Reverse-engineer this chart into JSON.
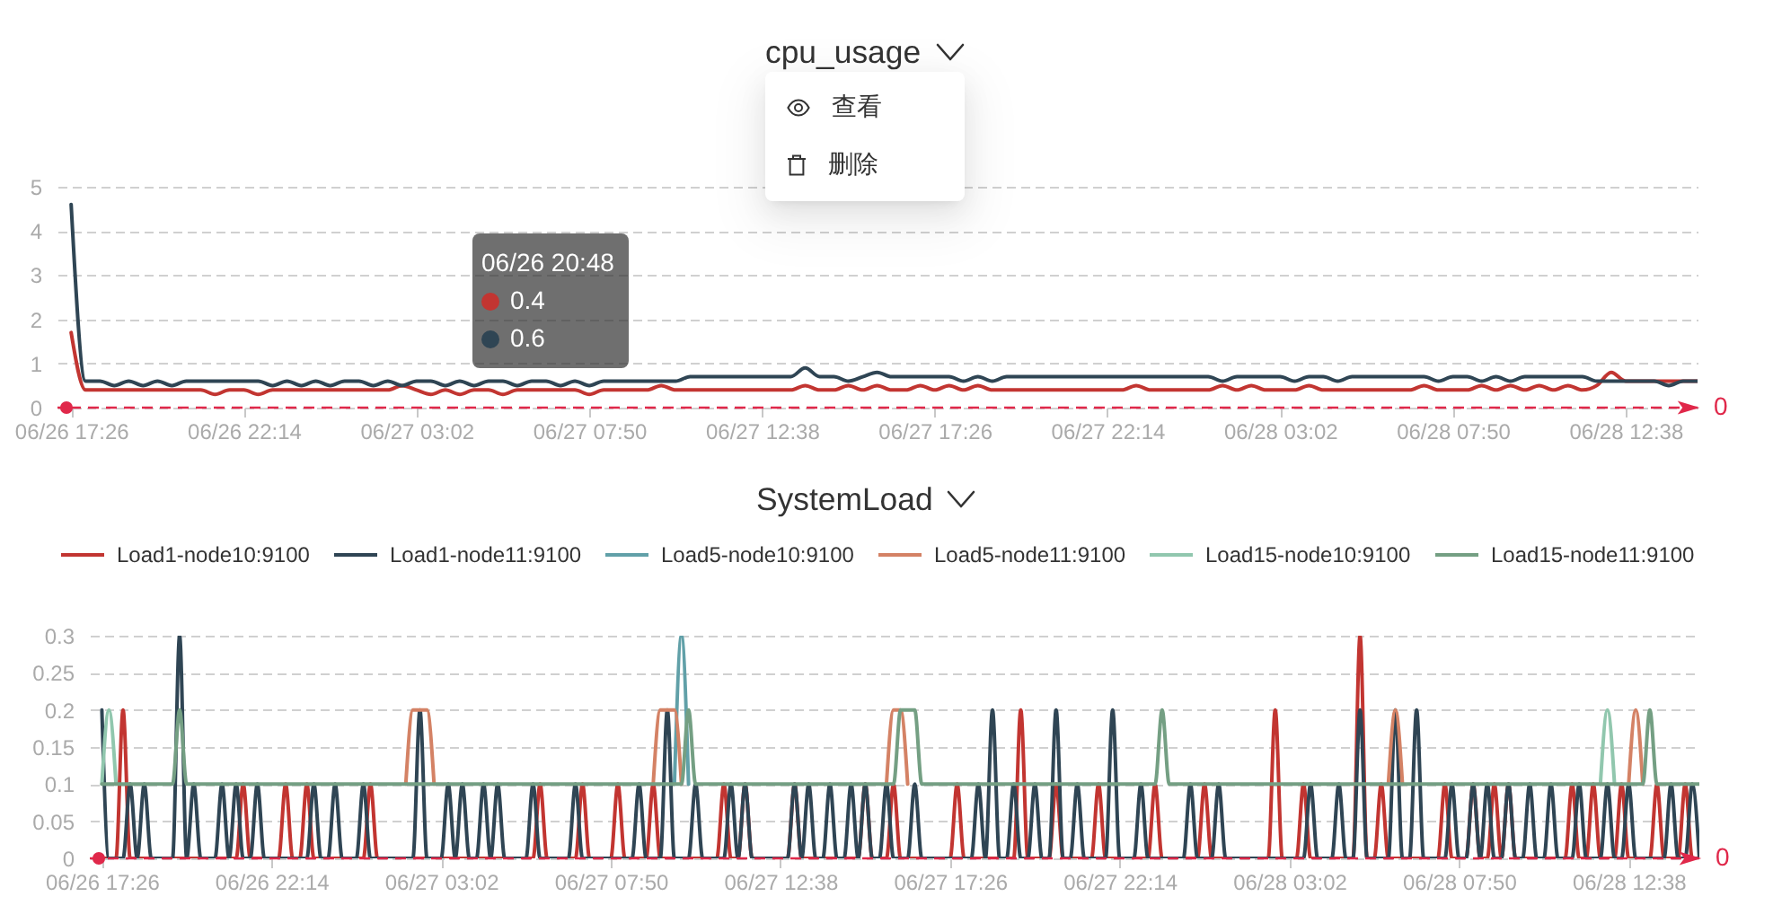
{
  "chart_data": [
    {
      "type": "line",
      "title": "cpu_usage",
      "categories": [
        "06/26 17:26",
        null,
        null,
        null,
        null,
        null,
        null,
        null,
        null,
        null,
        null,
        null,
        "06/26 22:14",
        null,
        null,
        null,
        null,
        null,
        null,
        null,
        null,
        null,
        null,
        null,
        "06/27 03:02",
        null,
        null,
        null,
        null,
        null,
        null,
        null,
        null,
        null,
        null,
        null,
        "06/27 07:50",
        null,
        null,
        null,
        null,
        null,
        null,
        null,
        null,
        null,
        null,
        null,
        "06/27 12:38",
        null,
        null,
        null,
        null,
        null,
        null,
        null,
        null,
        null,
        null,
        null,
        "06/27 17:26",
        null,
        null,
        null,
        null,
        null,
        null,
        null,
        null,
        null,
        null,
        null,
        "06/27 22:14",
        null,
        null,
        null,
        null,
        null,
        null,
        null,
        null,
        null,
        null,
        null,
        "06/28 03:02",
        null,
        null,
        null,
        null,
        null,
        null,
        null,
        null,
        null,
        null,
        null,
        "06/28 07:50",
        null,
        null,
        null,
        null,
        null,
        null,
        null,
        null,
        null,
        null,
        null,
        "06/28 12:38",
        null,
        null,
        null,
        null,
        null
      ],
      "ylim": [
        0,
        5
      ],
      "yticks": [
        0,
        1,
        2,
        3,
        4,
        5
      ],
      "grid": "y",
      "series": [
        {
          "color": "#c23531",
          "values": [
            1.7,
            0.4,
            0.4,
            0.4,
            0.4,
            0.4,
            0.4,
            0.4,
            0.4,
            0.4,
            0.3,
            0.4,
            0.4,
            0.3,
            0.4,
            0.4,
            0.4,
            0.4,
            0.4,
            0.4,
            0.4,
            0.4,
            0.4,
            0.5,
            0.4,
            0.3,
            0.4,
            0.3,
            0.4,
            0.4,
            0.3,
            0.4,
            0.4,
            0.4,
            0.4,
            0.4,
            0.3,
            0.4,
            0.4,
            0.4,
            0.4,
            0.5,
            0.4,
            0.4,
            0.4,
            0.4,
            0.4,
            0.4,
            0.4,
            0.4,
            0.4,
            0.5,
            0.4,
            0.4,
            0.5,
            0.4,
            0.5,
            0.4,
            0.4,
            0.5,
            0.4,
            0.5,
            0.4,
            0.5,
            0.4,
            0.4,
            0.4,
            0.4,
            0.4,
            0.4,
            0.4,
            0.4,
            0.4,
            0.4,
            0.5,
            0.4,
            0.4,
            0.4,
            0.4,
            0.4,
            0.5,
            0.4,
            0.5,
            0.4,
            0.4,
            0.4,
            0.5,
            0.4,
            0.4,
            0.4,
            0.4,
            0.4,
            0.4,
            0.4,
            0.5,
            0.4,
            0.4,
            0.4,
            0.5,
            0.4,
            0.5,
            0.4,
            0.5,
            0.4,
            0.5,
            0.4,
            0.5,
            0.8,
            0.6,
            0.6,
            0.6,
            0.6,
            0.6,
            0.6
          ]
        },
        {
          "color": "#2f4554",
          "values": [
            4.6,
            0.6,
            0.6,
            0.5,
            0.6,
            0.5,
            0.6,
            0.5,
            0.6,
            0.6,
            0.6,
            0.6,
            0.6,
            0.6,
            0.5,
            0.6,
            0.5,
            0.6,
            0.5,
            0.6,
            0.6,
            0.5,
            0.6,
            0.5,
            0.6,
            0.6,
            0.5,
            0.6,
            0.5,
            0.6,
            0.6,
            0.5,
            0.6,
            0.6,
            0.5,
            0.6,
            0.5,
            0.6,
            0.6,
            0.6,
            0.6,
            0.6,
            0.6,
            0.7,
            0.7,
            0.7,
            0.7,
            0.7,
            0.7,
            0.7,
            0.7,
            0.9,
            0.7,
            0.7,
            0.6,
            0.7,
            0.8,
            0.7,
            0.7,
            0.7,
            0.7,
            0.7,
            0.6,
            0.7,
            0.6,
            0.7,
            0.7,
            0.7,
            0.7,
            0.7,
            0.7,
            0.7,
            0.7,
            0.7,
            0.7,
            0.7,
            0.7,
            0.7,
            0.7,
            0.7,
            0.6,
            0.7,
            0.7,
            0.7,
            0.7,
            0.6,
            0.7,
            0.7,
            0.6,
            0.7,
            0.7,
            0.7,
            0.7,
            0.7,
            0.7,
            0.6,
            0.7,
            0.7,
            0.6,
            0.7,
            0.6,
            0.7,
            0.7,
            0.7,
            0.7,
            0.7,
            0.6,
            0.6,
            0.6,
            0.6,
            0.6,
            0.5,
            0.6,
            0.6
          ]
        }
      ],
      "ref_lines": [
        {
          "axis": "y",
          "value": 0,
          "label": "0",
          "color": "#e0284a",
          "line_style": "dashed"
        }
      ],
      "annotations": [
        "06/26 20:48",
        "0.4",
        "0.6",
        "查看",
        "删除"
      ]
    },
    {
      "type": "line",
      "title": "SystemLoad",
      "legend": "top",
      "categories": [
        "06/26 17:26",
        null,
        null,
        null,
        null,
        null,
        null,
        null,
        null,
        null,
        null,
        null,
        null,
        null,
        null,
        null,
        null,
        null,
        null,
        null,
        null,
        null,
        null,
        null,
        "06/26 22:14",
        null,
        null,
        null,
        null,
        null,
        null,
        null,
        null,
        null,
        null,
        null,
        null,
        null,
        null,
        null,
        null,
        null,
        null,
        null,
        null,
        null,
        null,
        null,
        "06/27 03:02",
        null,
        null,
        null,
        null,
        null,
        null,
        null,
        null,
        null,
        null,
        null,
        null,
        null,
        null,
        null,
        null,
        null,
        null,
        null,
        null,
        null,
        null,
        null,
        "06/27 07:50",
        null,
        null,
        null,
        null,
        null,
        null,
        null,
        null,
        null,
        null,
        null,
        null,
        null,
        null,
        null,
        null,
        null,
        null,
        null,
        null,
        null,
        null,
        null,
        "06/27 12:38",
        null,
        null,
        null,
        null,
        null,
        null,
        null,
        null,
        null,
        null,
        null,
        null,
        null,
        null,
        null,
        null,
        null,
        null,
        null,
        null,
        null,
        null,
        null,
        "06/27 17:26",
        null,
        null,
        null,
        null,
        null,
        null,
        null,
        null,
        null,
        null,
        null,
        null,
        null,
        null,
        null,
        null,
        null,
        null,
        null,
        null,
        null,
        null,
        null,
        "06/27 22:14",
        null,
        null,
        null,
        null,
        null,
        null,
        null,
        null,
        null,
        null,
        null,
        null,
        null,
        null,
        null,
        null,
        null,
        null,
        null,
        null,
        null,
        null,
        null,
        "06/28 03:02",
        null,
        null,
        null,
        null,
        null,
        null,
        null,
        null,
        null,
        null,
        null,
        null,
        null,
        null,
        null,
        null,
        null,
        null,
        null,
        null,
        null,
        null,
        null,
        "06/28 07:50",
        null,
        null,
        null,
        null,
        null,
        null,
        null,
        null,
        null,
        null,
        null,
        null,
        null,
        null,
        null,
        null,
        null,
        null,
        null,
        null,
        null,
        null,
        null,
        "06/28 12:38",
        null,
        null,
        null,
        null,
        null,
        null,
        null,
        null,
        null,
        null
      ],
      "ylim": [
        0,
        0.3
      ],
      "yticks": [
        0,
        0.05,
        0.1,
        0.15,
        0.2,
        0.25,
        0.3
      ],
      "grid": "y",
      "series": [
        {
          "name": "Load1-node10:9100",
          "color": "#c23531",
          "values": [
            0,
            0,
            0,
            0.2,
            0,
            0,
            0,
            0,
            0,
            0,
            0,
            0,
            0,
            0,
            0,
            0,
            0,
            0,
            0,
            0,
            0.1,
            0,
            0,
            0,
            0,
            0,
            0.1,
            0,
            0,
            0.1,
            0,
            0,
            0,
            0,
            0,
            0,
            0,
            0,
            0.1,
            0,
            0,
            0,
            0,
            0,
            0,
            0,
            0,
            0,
            0,
            0,
            0,
            0,
            0,
            0,
            0,
            0,
            0,
            0,
            0,
            0,
            0,
            0,
            0.1,
            0,
            0,
            0,
            0,
            0,
            0.1,
            0,
            0,
            0,
            0,
            0.1,
            0,
            0,
            0,
            0,
            0.1,
            0,
            0,
            0,
            0,
            0,
            0,
            0,
            0,
            0,
            0.1,
            0,
            0,
            0.1,
            0,
            0,
            0,
            0,
            0,
            0,
            0.1,
            0,
            0,
            0,
            0,
            0,
            0,
            0,
            0,
            0,
            0.1,
            0,
            0,
            0,
            0.1,
            0,
            0,
            0,
            0,
            0,
            0,
            0,
            0,
            0.1,
            0,
            0,
            0,
            0,
            0,
            0,
            0,
            0,
            0.2,
            0,
            0,
            0,
            0,
            0.1,
            0,
            0,
            0,
            0,
            0,
            0.1,
            0,
            0,
            0,
            0,
            0,
            0,
            0,
            0.1,
            0,
            0,
            0,
            0,
            0,
            0,
            0.1,
            0,
            0,
            0,
            0,
            0,
            0,
            0,
            0,
            0,
            0.2,
            0,
            0,
            0,
            0.1,
            0,
            0,
            0,
            0,
            0,
            0,
            0,
            0.3,
            0,
            0,
            0.1,
            0,
            0,
            0,
            0,
            0,
            0,
            0,
            0,
            0.1,
            0,
            0,
            0,
            0.1,
            0,
            0,
            0.1,
            0,
            0.1,
            0,
            0,
            0,
            0,
            0,
            0,
            0,
            0,
            0.1,
            0,
            0,
            0.1,
            0,
            0,
            0,
            0.1,
            0,
            0,
            0,
            0,
            0.1,
            0,
            0,
            0,
            0.1,
            0,
            0
          ]
        },
        {
          "name": "Load1-node11:9100",
          "color": "#2f4554",
          "values": [
            0.2,
            0,
            0,
            0,
            0.1,
            0,
            0.1,
            0,
            0,
            0,
            0,
            0.3,
            0,
            0.1,
            0,
            0,
            0,
            0.1,
            0,
            0.1,
            0,
            0,
            0.1,
            0,
            0,
            0,
            0,
            0,
            0,
            0,
            0.1,
            0,
            0,
            0.1,
            0,
            0,
            0,
            0.1,
            0,
            0,
            0,
            0,
            0,
            0,
            0,
            0.2,
            0,
            0,
            0,
            0.1,
            0,
            0.1,
            0,
            0,
            0.1,
            0,
            0.1,
            0,
            0,
            0,
            0,
            0.1,
            0,
            0,
            0,
            0,
            0,
            0.1,
            0,
            0,
            0,
            0,
            0,
            0,
            0,
            0,
            0.1,
            0,
            0,
            0,
            0.2,
            0,
            0,
            0,
            0.1,
            0,
            0,
            0,
            0,
            0.1,
            0,
            0.1,
            0,
            0,
            0,
            0,
            0,
            0,
            0.1,
            0,
            0.1,
            0,
            0,
            0.1,
            0,
            0,
            0.1,
            0,
            0.1,
            0,
            0,
            0.1,
            0,
            0,
            0,
            0.1,
            0,
            0,
            0,
            0,
            0,
            0,
            0,
            0,
            0.1,
            0,
            0.2,
            0,
            0,
            0.1,
            0,
            0,
            0.1,
            0,
            0,
            0.2,
            0,
            0,
            0.1,
            0,
            0,
            0,
            0,
            0.2,
            0,
            0,
            0,
            0.1,
            0,
            0,
            0,
            0,
            0,
            0,
            0.1,
            0,
            0,
            0,
            0.1,
            0,
            0,
            0,
            0,
            0,
            0,
            0,
            0,
            0,
            0,
            0,
            0,
            0.1,
            0,
            0,
            0,
            0.1,
            0,
            0,
            0.2,
            0,
            0,
            0,
            0,
            0.2,
            0,
            0,
            0.2,
            0,
            0,
            0,
            0,
            0.1,
            0,
            0,
            0.1,
            0,
            0.1,
            0,
            0,
            0.1,
            0,
            0,
            0.1,
            0,
            0,
            0.1,
            0,
            0,
            0,
            0.1,
            0,
            0,
            0,
            0.1,
            0,
            0,
            0.1,
            0,
            0,
            0,
            0,
            0,
            0.1,
            0,
            0,
            0.1,
            0
          ]
        },
        {
          "name": "Load5-node10:9100",
          "color": "#61a0a8",
          "values": [
            null,
            null,
            null,
            null,
            null,
            null,
            null,
            null,
            null,
            null,
            null,
            null,
            null,
            null,
            null,
            null,
            null,
            null,
            null,
            null,
            null,
            null,
            null,
            null,
            null,
            null,
            null,
            null,
            null,
            null,
            null,
            null,
            null,
            null,
            null,
            null,
            null,
            null,
            null,
            null,
            null,
            null,
            null,
            null,
            null,
            null,
            null,
            null,
            null,
            null,
            null,
            null,
            null,
            null,
            null,
            null,
            null,
            null,
            null,
            null,
            null,
            null,
            null,
            null,
            null,
            null,
            null,
            null,
            null,
            null,
            null,
            null,
            null,
            null,
            null,
            null,
            null,
            null,
            null,
            null,
            null,
            0.1,
            0.3,
            0.1,
            null,
            null,
            null,
            null,
            null,
            null,
            null,
            null,
            null,
            null,
            null,
            null,
            null,
            null,
            null,
            null,
            null,
            null,
            null,
            null,
            null,
            null,
            null,
            null,
            null,
            null,
            null,
            null,
            null,
            null,
            null,
            null,
            null,
            null,
            null,
            null,
            null,
            null,
            null,
            null,
            null,
            null,
            null,
            null,
            null,
            null,
            null,
            null,
            null,
            null,
            null,
            null,
            null,
            null,
            null,
            null,
            null,
            null,
            null,
            null,
            null,
            null,
            null,
            null,
            null,
            null,
            null,
            null,
            null,
            null,
            null,
            null,
            null,
            null,
            null,
            null,
            null,
            null,
            null,
            null,
            null,
            null,
            null,
            null,
            null,
            null,
            null,
            null,
            null,
            null,
            null,
            null,
            null,
            null,
            null,
            null,
            null,
            null,
            null,
            null,
            null,
            null,
            null,
            null,
            null,
            null,
            null,
            null,
            null,
            null,
            null,
            null,
            null,
            null,
            null,
            null,
            null,
            null,
            null,
            null,
            null,
            null,
            null,
            null,
            null,
            null,
            null,
            null,
            null,
            null,
            null,
            null,
            null,
            null,
            null,
            null,
            null,
            null,
            null,
            null,
            null,
            null,
            null
          ]
        },
        {
          "name": "Load5-node11:9100",
          "color": "#d48265",
          "values": [
            null,
            null,
            null,
            null,
            null,
            null,
            null,
            null,
            null,
            null,
            null,
            null,
            null,
            null,
            null,
            null,
            null,
            null,
            null,
            null,
            null,
            null,
            null,
            null,
            null,
            null,
            null,
            null,
            null,
            null,
            null,
            null,
            null,
            null,
            null,
            null,
            null,
            null,
            null,
            null,
            null,
            null,
            null,
            0.1,
            0.2,
            0.2,
            0.2,
            0.1,
            null,
            null,
            null,
            null,
            null,
            null,
            null,
            null,
            null,
            null,
            null,
            null,
            null,
            null,
            null,
            null,
            null,
            null,
            null,
            null,
            null,
            null,
            null,
            null,
            null,
            null,
            null,
            null,
            null,
            null,
            0.1,
            0.2,
            0.2,
            0.2,
            0.1,
            null,
            null,
            null,
            null,
            null,
            null,
            null,
            null,
            null,
            null,
            null,
            null,
            null,
            null,
            null,
            null,
            null,
            null,
            null,
            null,
            null,
            null,
            null,
            null,
            null,
            null,
            null,
            null,
            0.1,
            0.2,
            0.2,
            0.1,
            null,
            null,
            null,
            null,
            null,
            null,
            null,
            null,
            null,
            null,
            null,
            null,
            null,
            null,
            null,
            null,
            null,
            null,
            null,
            null,
            null,
            null,
            null,
            null,
            null,
            null,
            null,
            null,
            null,
            null,
            null,
            null,
            null,
            null,
            null,
            null,
            null,
            null,
            null,
            null,
            null,
            null,
            null,
            null,
            null,
            null,
            null,
            null,
            null,
            null,
            null,
            null,
            null,
            null,
            null,
            null,
            null,
            null,
            null,
            null,
            null,
            null,
            null,
            null,
            null,
            null,
            null,
            0.1,
            0.2,
            0.1,
            null,
            null,
            null,
            null,
            null,
            null,
            null,
            null,
            null,
            null,
            null,
            null,
            null,
            null,
            null,
            null,
            null,
            null,
            null,
            null,
            null,
            null,
            null,
            null,
            null,
            null,
            null,
            null,
            null,
            null,
            null,
            0.1,
            0.2,
            0.1,
            null,
            null,
            null,
            null,
            null,
            null,
            null,
            null
          ]
        },
        {
          "name": "Load15-node10:9100",
          "color": "#91c7ae",
          "values": [
            0.1,
            0.2,
            0.1,
            null,
            null,
            null,
            null,
            null,
            null,
            null,
            null,
            null,
            null,
            null,
            null,
            null,
            null,
            null,
            null,
            null,
            null,
            null,
            null,
            null,
            null,
            null,
            null,
            null,
            null,
            null,
            null,
            null,
            null,
            null,
            null,
            null,
            null,
            null,
            null,
            null,
            null,
            null,
            null,
            null,
            null,
            null,
            null,
            null,
            null,
            null,
            null,
            null,
            null,
            null,
            null,
            null,
            null,
            null,
            null,
            null,
            null,
            null,
            null,
            null,
            null,
            null,
            null,
            null,
            null,
            null,
            null,
            null,
            null,
            null,
            null,
            null,
            null,
            null,
            null,
            null,
            null,
            null,
            null,
            null,
            null,
            null,
            null,
            null,
            null,
            null,
            null,
            null,
            null,
            null,
            null,
            null,
            null,
            null,
            null,
            null,
            null,
            null,
            null,
            null,
            null,
            null,
            null,
            null,
            null,
            null,
            null,
            null,
            null,
            null,
            null,
            null,
            null,
            null,
            null,
            null,
            null,
            null,
            null,
            null,
            null,
            null,
            null,
            null,
            null,
            null,
            null,
            null,
            null,
            null,
            null,
            null,
            null,
            null,
            null,
            null,
            null,
            null,
            null,
            null,
            null,
            null,
            null,
            null,
            null,
            null,
            null,
            null,
            null,
            null,
            null,
            null,
            null,
            null,
            null,
            null,
            null,
            null,
            null,
            null,
            null,
            null,
            null,
            null,
            null,
            null,
            null,
            null,
            null,
            null,
            null,
            null,
            null,
            null,
            null,
            null,
            null,
            null,
            null,
            null,
            null,
            null,
            null,
            null,
            null,
            null,
            null,
            null,
            null,
            null,
            null,
            null,
            null,
            null,
            null,
            null,
            null,
            null,
            null,
            null,
            null,
            null,
            null,
            null,
            null,
            null,
            null,
            null,
            0.1,
            0.2,
            0.1,
            null,
            null,
            null,
            null,
            null,
            null,
            null,
            null,
            null,
            null,
            null,
            null
          ]
        },
        {
          "name": "Load15-node11:9100",
          "color": "#749f83",
          "values": [
            0.1,
            0.1,
            0.1,
            0.1,
            0.1,
            0.1,
            0.1,
            0.1,
            0.1,
            0.1,
            0.1,
            0.2,
            0.1,
            0.1,
            0.1,
            0.1,
            0.1,
            0.1,
            0.1,
            0.1,
            0.1,
            0.1,
            0.1,
            0.1,
            0.1,
            0.1,
            0.1,
            0.1,
            0.1,
            0.1,
            0.1,
            0.1,
            0.1,
            0.1,
            0.1,
            0.1,
            0.1,
            0.1,
            0.1,
            0.1,
            0.1,
            0.1,
            0.1,
            0.1,
            0.1,
            0.1,
            0.1,
            0.1,
            0.1,
            0.1,
            0.1,
            0.1,
            0.1,
            0.1,
            0.1,
            0.1,
            0.1,
            0.1,
            0.1,
            0.1,
            0.1,
            0.1,
            0.1,
            0.1,
            0.1,
            0.1,
            0.1,
            0.1,
            0.1,
            0.1,
            0.1,
            0.1,
            0.1,
            0.1,
            0.1,
            0.1,
            0.1,
            0.1,
            0.1,
            0.1,
            0.1,
            0.1,
            0.1,
            0.2,
            0.1,
            0.1,
            0.1,
            0.1,
            0.1,
            0.1,
            0.1,
            0.1,
            0.1,
            0.1,
            0.1,
            0.1,
            0.1,
            0.1,
            0.1,
            0.1,
            0.1,
            0.1,
            0.1,
            0.1,
            0.1,
            0.1,
            0.1,
            0.1,
            0.1,
            0.1,
            0.1,
            0.1,
            0.1,
            0.2,
            0.2,
            0.2,
            0.1,
            0.1,
            0.1,
            0.1,
            0.1,
            0.1,
            0.1,
            0.1,
            0.1,
            0.1,
            0.1,
            0.1,
            0.1,
            0.1,
            0.1,
            0.1,
            0.1,
            0.1,
            0.1,
            0.1,
            0.1,
            0.1,
            0.1,
            0.1,
            0.1,
            0.1,
            0.1,
            0.1,
            0.1,
            0.1,
            0.1,
            0.1,
            0.1,
            0.1,
            0.2,
            0.1,
            0.1,
            0.1,
            0.1,
            0.1,
            0.1,
            0.1,
            0.1,
            0.1,
            0.1,
            0.1,
            0.1,
            0.1,
            0.1,
            0.1,
            0.1,
            0.1,
            0.1,
            0.1,
            0.1,
            0.1,
            0.1,
            0.1,
            0.1,
            0.1,
            0.1,
            0.1,
            0.1,
            0.1,
            0.1,
            0.1,
            0.1,
            0.1,
            0.1,
            0.1,
            0.1,
            0.1,
            0.1,
            0.1,
            0.1,
            0.1,
            0.1,
            0.1,
            0.1,
            0.1,
            0.1,
            0.1,
            0.1,
            0.1,
            0.1,
            0.1,
            0.1,
            0.1,
            0.1,
            0.1,
            0.1,
            0.1,
            0.1,
            0.1,
            0.1,
            0.1,
            0.1,
            0.1,
            0.1,
            0.1,
            0.1,
            0.1,
            0.1,
            0.2,
            0.1,
            0.1,
            0.1,
            0.1,
            0.1,
            0.1,
            0.1
          ]
        }
      ],
      "ref_lines": [
        {
          "axis": "y",
          "value": 0,
          "label": "0",
          "color": "#e0284a",
          "line_style": "dashed"
        }
      ]
    }
  ]
}
